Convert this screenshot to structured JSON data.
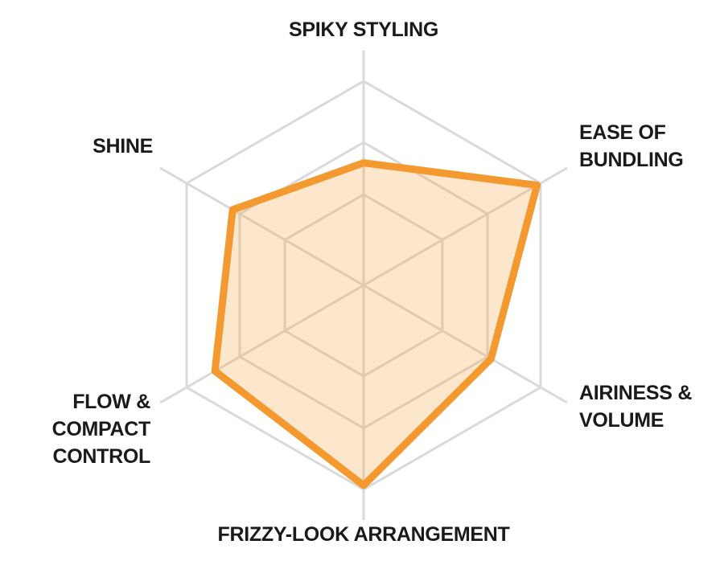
{
  "chart_data": {
    "type": "radar",
    "title": "",
    "axes": [
      "SPIKY STYLING",
      "EASE OF BUNDLING",
      "AIRINESS & VOLUME",
      "FRIZZY-LOOK ARRANGEMENT",
      "FLOW & COMPACT CONTROL",
      "SHINE"
    ],
    "start_axis": "top",
    "direction": "clockwise",
    "max": 5,
    "values": [
      3.0,
      4.9,
      3.6,
      4.9,
      4.2,
      3.7
    ],
    "grid": {
      "ring_fractions": [
        0.445,
        0.7,
        1.0
      ],
      "ring_shape": "hexagon",
      "axis_extension": 1.15
    },
    "legend": "none",
    "colors": {
      "stroke": "#F3992F",
      "fill": "rgba(243,153,47,0.24)",
      "grid": "#DADADA",
      "label": "#1A1A1A"
    },
    "style": {
      "data_stroke_width": 9,
      "grid_stroke_width": 3
    }
  },
  "labels": {
    "spiky_styling": [
      "SPIKY STYLING"
    ],
    "ease_of_bundling": [
      "EASE OF",
      "BUNDLING"
    ],
    "airiness_volume": [
      "AIRINESS &",
      "VOLUME"
    ],
    "frizzy_look": [
      "FRIZZY-LOOK ARRANGEMENT"
    ],
    "flow_compact": [
      "FLOW &",
      "COMPACT",
      "CONTROL"
    ],
    "shine": [
      "SHINE"
    ]
  }
}
